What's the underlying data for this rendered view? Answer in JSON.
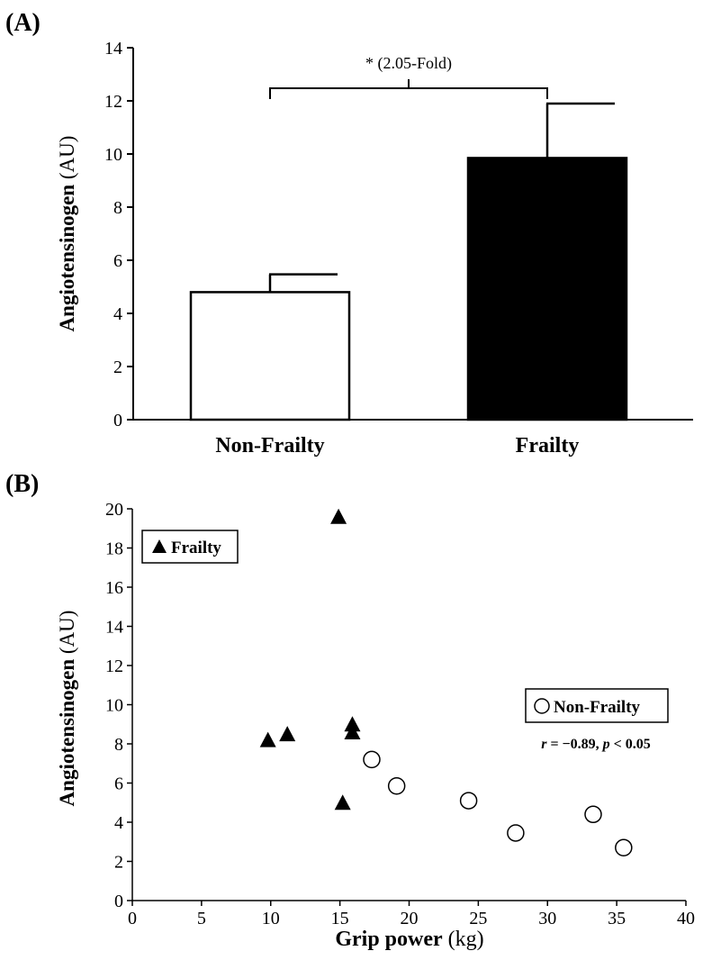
{
  "chart_data": [
    {
      "type": "bar",
      "panel_label": "(A)",
      "categories": [
        "Non-Frailty",
        "Frailty"
      ],
      "values": [
        4.8,
        9.85
      ],
      "errors": [
        0.67,
        2.05
      ],
      "bar_colors": [
        "#ffffff",
        "#000000"
      ],
      "ylabel": {
        "bold": "Angiotensinogen",
        "plain": " (AU)"
      },
      "ylim": [
        0,
        14
      ],
      "yticks": [
        "0",
        "2",
        "4",
        "6",
        "8",
        "10",
        "12",
        "14"
      ],
      "annotation": "* (2.05-Fold)"
    },
    {
      "type": "scatter",
      "panel_label": "(B)",
      "series": [
        {
          "name": "Frailty",
          "marker": "triangle",
          "points": [
            [
              9.8,
              8.2
            ],
            [
              11.2,
              8.5
            ],
            [
              14.9,
              19.6
            ],
            [
              15.2,
              5.0
            ],
            [
              15.9,
              8.6
            ],
            [
              15.9,
              9.0
            ]
          ]
        },
        {
          "name": "Non-Frailty",
          "marker": "circle",
          "points": [
            [
              17.3,
              7.2
            ],
            [
              19.1,
              5.85
            ],
            [
              24.3,
              5.1
            ],
            [
              27.7,
              3.45
            ],
            [
              33.3,
              4.4
            ],
            [
              35.5,
              2.7
            ]
          ]
        }
      ],
      "xlabel": {
        "bold": "Grip power",
        "plain": " (kg)"
      },
      "ylabel": {
        "bold": "Angiotensinogen",
        "plain": " (AU)"
      },
      "xlim": [
        0,
        40
      ],
      "ylim": [
        0,
        20
      ],
      "xticks": [
        "0",
        "5",
        "10",
        "15",
        "20",
        "25",
        "30",
        "35",
        "40"
      ],
      "yticks": [
        "0",
        "2",
        "4",
        "6",
        "8",
        "10",
        "12",
        "14",
        "16",
        "18",
        "20"
      ],
      "stats": {
        "r_symbol": "r",
        "r_value": " = −0.89, ",
        "p_symbol": "p",
        "p_value": " < 0.05"
      }
    }
  ]
}
